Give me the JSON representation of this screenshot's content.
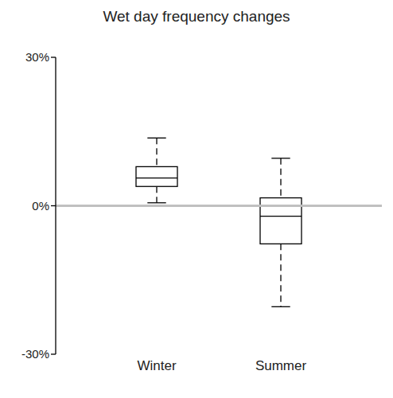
{
  "chart_data": {
    "type": "box",
    "title": "Wet day frequency changes",
    "categories": [
      "Winter",
      "Summer"
    ],
    "boxes": [
      {
        "whislo": 0.6,
        "q1": 3.9,
        "med": 5.6,
        "q3": 7.9,
        "whishi": 13.7
      },
      {
        "whislo": -20.4,
        "q1": -7.7,
        "med": -2.1,
        "q3": 1.6,
        "whishi": 9.6
      }
    ],
    "color": "#000000",
    "baseline": 0,
    "ylim": [
      -30,
      30
    ],
    "yticks": [
      {
        "value": -30,
        "label": "-30%"
      },
      {
        "value": 0,
        "label": "0%"
      },
      {
        "value": 30,
        "label": "30%"
      }
    ],
    "grid": false
  }
}
